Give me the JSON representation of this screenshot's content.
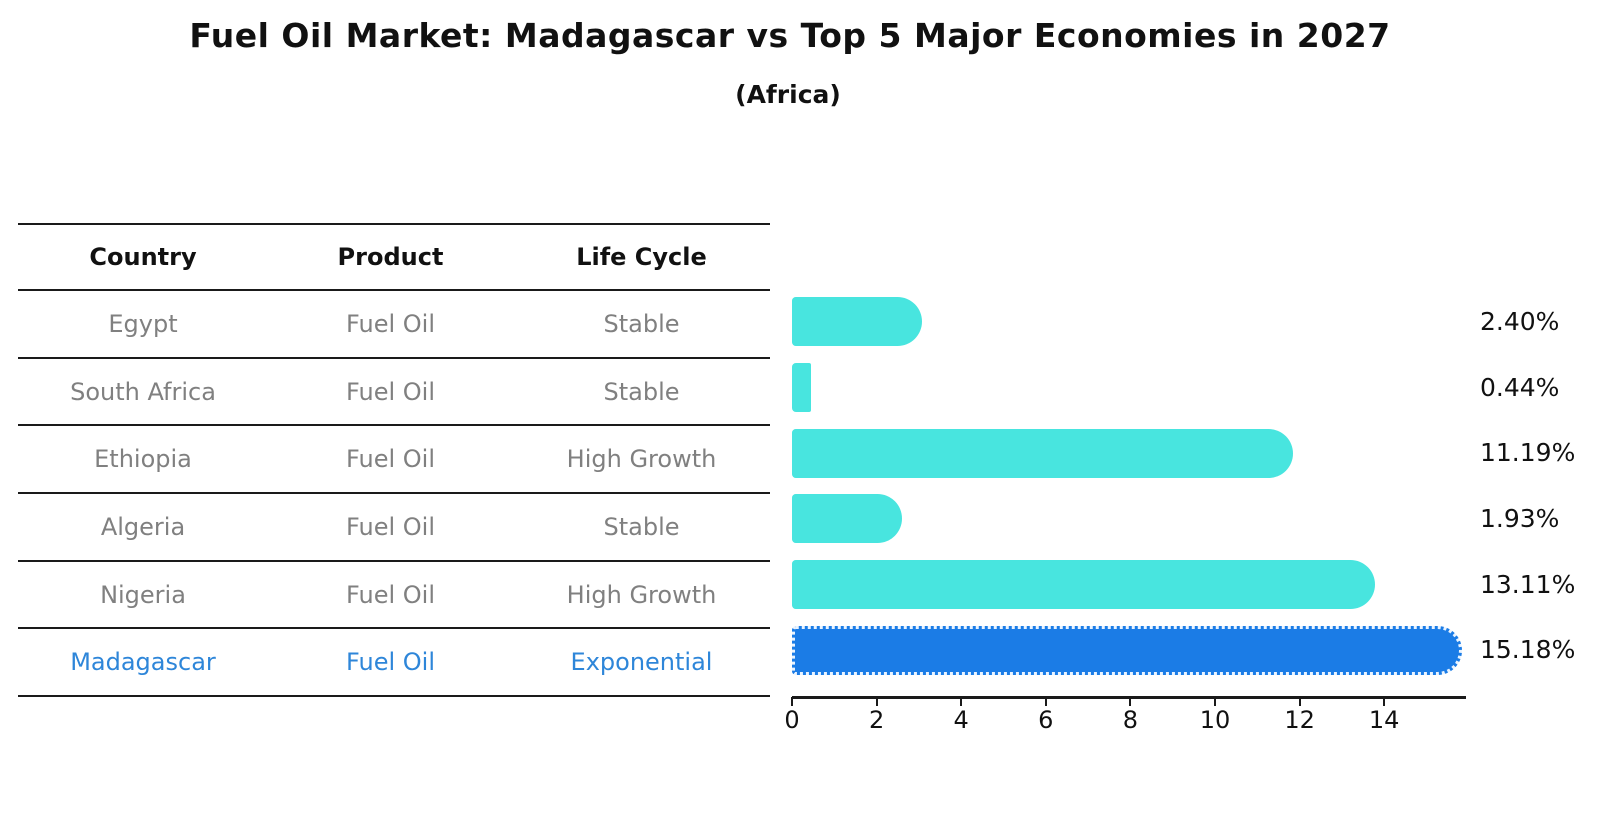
{
  "header": {
    "title": "Fuel Oil Market: Madagascar vs Top 5 Major Economies in 2027",
    "subtitle": "(Africa)"
  },
  "table": {
    "columns": [
      "Country",
      "Product",
      "Life Cycle"
    ],
    "rows": [
      {
        "country": "Egypt",
        "product": "Fuel Oil",
        "life_cycle": "Stable",
        "share": "2.40%"
      },
      {
        "country": "South Africa",
        "product": "Fuel Oil",
        "life_cycle": "Stable",
        "share": "0.44%"
      },
      {
        "country": "Ethiopia",
        "product": "Fuel Oil",
        "life_cycle": "High Growth",
        "share": "11.19%"
      },
      {
        "country": "Algeria",
        "product": "Fuel Oil",
        "life_cycle": "Stable",
        "share": "1.93%"
      },
      {
        "country": "Nigeria",
        "product": "Fuel Oil",
        "life_cycle": "High Growth",
        "share": "13.11%"
      },
      {
        "country": "Madagascar",
        "product": "Fuel Oil",
        "life_cycle": "Exponential",
        "share": "15.18%"
      }
    ]
  },
  "chart_data": {
    "type": "bar",
    "orientation": "horizontal",
    "title": "Fuel Oil Market: Madagascar vs Top 5 Major Economies in 2027",
    "subtitle": "(Africa)",
    "categories": [
      "Egypt",
      "South Africa",
      "Ethiopia",
      "Algeria",
      "Nigeria",
      "Madagascar"
    ],
    "values": [
      2.4,
      0.44,
      11.19,
      1.93,
      13.11,
      15.18
    ],
    "value_labels": [
      "2.40%",
      "0.44%",
      "11.19%",
      "1.93%",
      "13.11%",
      "15.18%"
    ],
    "xlabel": "",
    "ylabel": "",
    "xlim": [
      0,
      16
    ],
    "xticks": [
      0,
      2,
      4,
      6,
      8,
      10,
      12,
      14
    ],
    "grid": false,
    "legend": false,
    "highlight_index": 5,
    "colors": {
      "bar_default": "#48e5df",
      "bar_highlight": "#1b7ce6",
      "highlight_border": "#eaf4ff",
      "row_text": "#808080",
      "highlight_text": "#2e86d9",
      "axis": "#1a1a1a",
      "label_text": "#111111"
    }
  }
}
